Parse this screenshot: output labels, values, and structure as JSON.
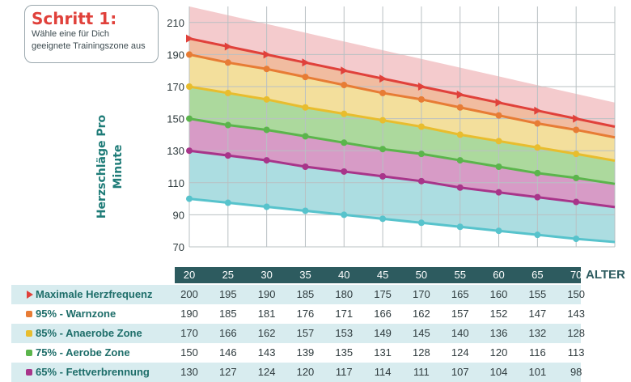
{
  "step": {
    "title": "Schritt 1:",
    "text_line1": "Wähle eine für Dich",
    "text_line2": "geeignete Trainingszone aus"
  },
  "chart_data": {
    "type": "area",
    "ylabel": "Herzschläge Pro Minute",
    "xlabel": "ALTER",
    "x": [
      20,
      25,
      30,
      35,
      40,
      45,
      50,
      55,
      60,
      65,
      70
    ],
    "x_axis_range": [
      20,
      75
    ],
    "ylim": [
      70,
      220
    ],
    "y_ticks": [
      70,
      90,
      110,
      130,
      150,
      170,
      190,
      210
    ],
    "grid": true,
    "series": [
      {
        "name": "Maximale Herzfrequenz",
        "color": "#e0413b",
        "marker": "triangle",
        "values": [
          200,
          195,
          190,
          185,
          180,
          175,
          170,
          165,
          160,
          155,
          150
        ]
      },
      {
        "name": "95% - Warnzone",
        "color": "#e77c35",
        "marker": "circle",
        "values": [
          190,
          185,
          181,
          176,
          171,
          166,
          162,
          157,
          152,
          147,
          143
        ]
      },
      {
        "name": "85% - Anaerobe Zone",
        "color": "#e8bd2e",
        "marker": "circle",
        "values": [
          170,
          166,
          162,
          157,
          153,
          149,
          145,
          140,
          136,
          132,
          128
        ]
      },
      {
        "name": "75% - Aerobe Zone",
        "color": "#5bb54c",
        "marker": "circle",
        "values": [
          150,
          146,
          143,
          139,
          135,
          131,
          128,
          124,
          120,
          116,
          113
        ]
      },
      {
        "name": "65% - Fettverbrennung",
        "color": "#a8358a",
        "marker": "circle",
        "values": [
          130,
          127,
          124,
          120,
          117,
          114,
          111,
          107,
          104,
          101,
          98
        ]
      }
    ]
  },
  "colors": {
    "max_band": "#f2c2c4",
    "warn_band": "#efb08f",
    "anaerob_band": "#f1d98b",
    "aerob_band": "#9dd28c",
    "fett_band": "#d08abc",
    "cyan_band": "#9ed7dc",
    "cyan_line": "#57c3cc",
    "grid": "#b9c0c3",
    "axis_text": "#2f3b3e",
    "age_bar": "#2d5b5f"
  }
}
